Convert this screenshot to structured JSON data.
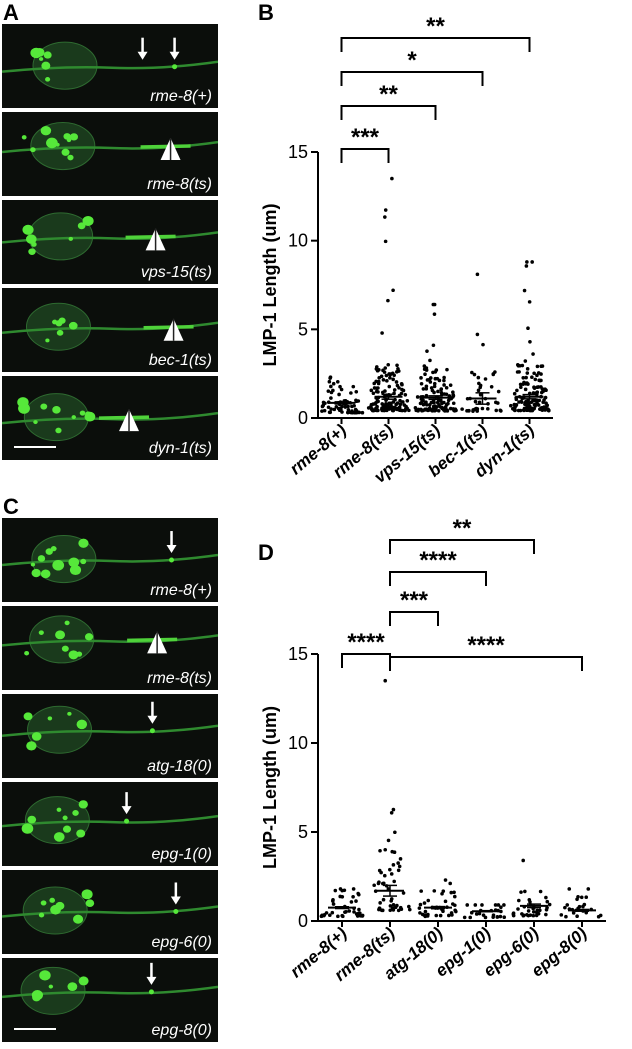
{
  "panels": {
    "a": {
      "letter": "A"
    },
    "b": {
      "letter": "B"
    },
    "c": {
      "letter": "C"
    },
    "d": {
      "letter": "D"
    }
  },
  "micrographs_a": [
    {
      "label": "rme-8(+)",
      "marker": "arrow"
    },
    {
      "label": "rme-8(ts)",
      "marker": "arrowhead"
    },
    {
      "label": "vps-15(ts)",
      "marker": "arrowhead"
    },
    {
      "label": "bec-1(ts)",
      "marker": "arrowhead"
    },
    {
      "label": "dyn-1(ts)",
      "marker": "arrowhead"
    }
  ],
  "micrographs_c": [
    {
      "label": "rme-8(+)",
      "marker": "arrow"
    },
    {
      "label": "rme-8(ts)",
      "marker": "arrowhead"
    },
    {
      "label": "atg-18(0)",
      "marker": "arrow"
    },
    {
      "label": "epg-1(0)",
      "marker": "arrow"
    },
    {
      "label": "epg-6(0)",
      "marker": "arrow"
    },
    {
      "label": "epg-8(0)",
      "marker": "arrow"
    }
  ],
  "chart_data": [
    {
      "type": "scatter",
      "panel": "B",
      "ylabel": "LMP-1 Length (um)",
      "ylim": [
        0,
        15
      ],
      "yticks": [
        "0",
        "5",
        "10",
        "15"
      ],
      "categories": [
        "rme-8(+)",
        "rme-8(ts)",
        "vps-15(ts)",
        "bec-1(ts)",
        "dyn-1(ts)"
      ],
      "means": [
        0.85,
        1.2,
        1.15,
        1.1,
        1.2
      ],
      "sem": [
        0.06,
        0.14,
        0.1,
        0.32,
        0.12
      ],
      "maxima": [
        2.3,
        13.5,
        6.4,
        8.1,
        8.8
      ],
      "point_counts": [
        70,
        140,
        120,
        40,
        130
      ],
      "significance": [
        {
          "from": 0,
          "to": 1,
          "label": "***"
        },
        {
          "from": 0,
          "to": 2,
          "label": "**"
        },
        {
          "from": 0,
          "to": 3,
          "label": "*"
        },
        {
          "from": 0,
          "to": 4,
          "label": "**"
        }
      ]
    },
    {
      "type": "scatter",
      "panel": "D",
      "ylabel": "LMP-1 Length (um)",
      "ylim": [
        0,
        15
      ],
      "yticks": [
        "0",
        "5",
        "10",
        "15"
      ],
      "categories": [
        "rme-8(+)",
        "rme-8(ts)",
        "atg-18(0)",
        "epg-1(0)",
        "epg-6(0)",
        "epg-8(0)"
      ],
      "means": [
        0.75,
        1.7,
        0.75,
        0.55,
        0.85,
        0.6
      ],
      "sem": [
        0.05,
        0.3,
        0.06,
        0.03,
        0.1,
        0.05
      ],
      "maxima": [
        1.8,
        13.5,
        2.3,
        0.9,
        3.4,
        1.8
      ],
      "point_counts": [
        40,
        50,
        40,
        25,
        35,
        25
      ],
      "significance": [
        {
          "from": 0,
          "to": 1,
          "label": "****"
        },
        {
          "from": 1,
          "to": 5,
          "label": "****"
        },
        {
          "from": 1,
          "to": 2,
          "label": "***"
        },
        {
          "from": 1,
          "to": 3,
          "label": "****"
        },
        {
          "from": 1,
          "to": 4,
          "label": "**"
        }
      ]
    }
  ]
}
